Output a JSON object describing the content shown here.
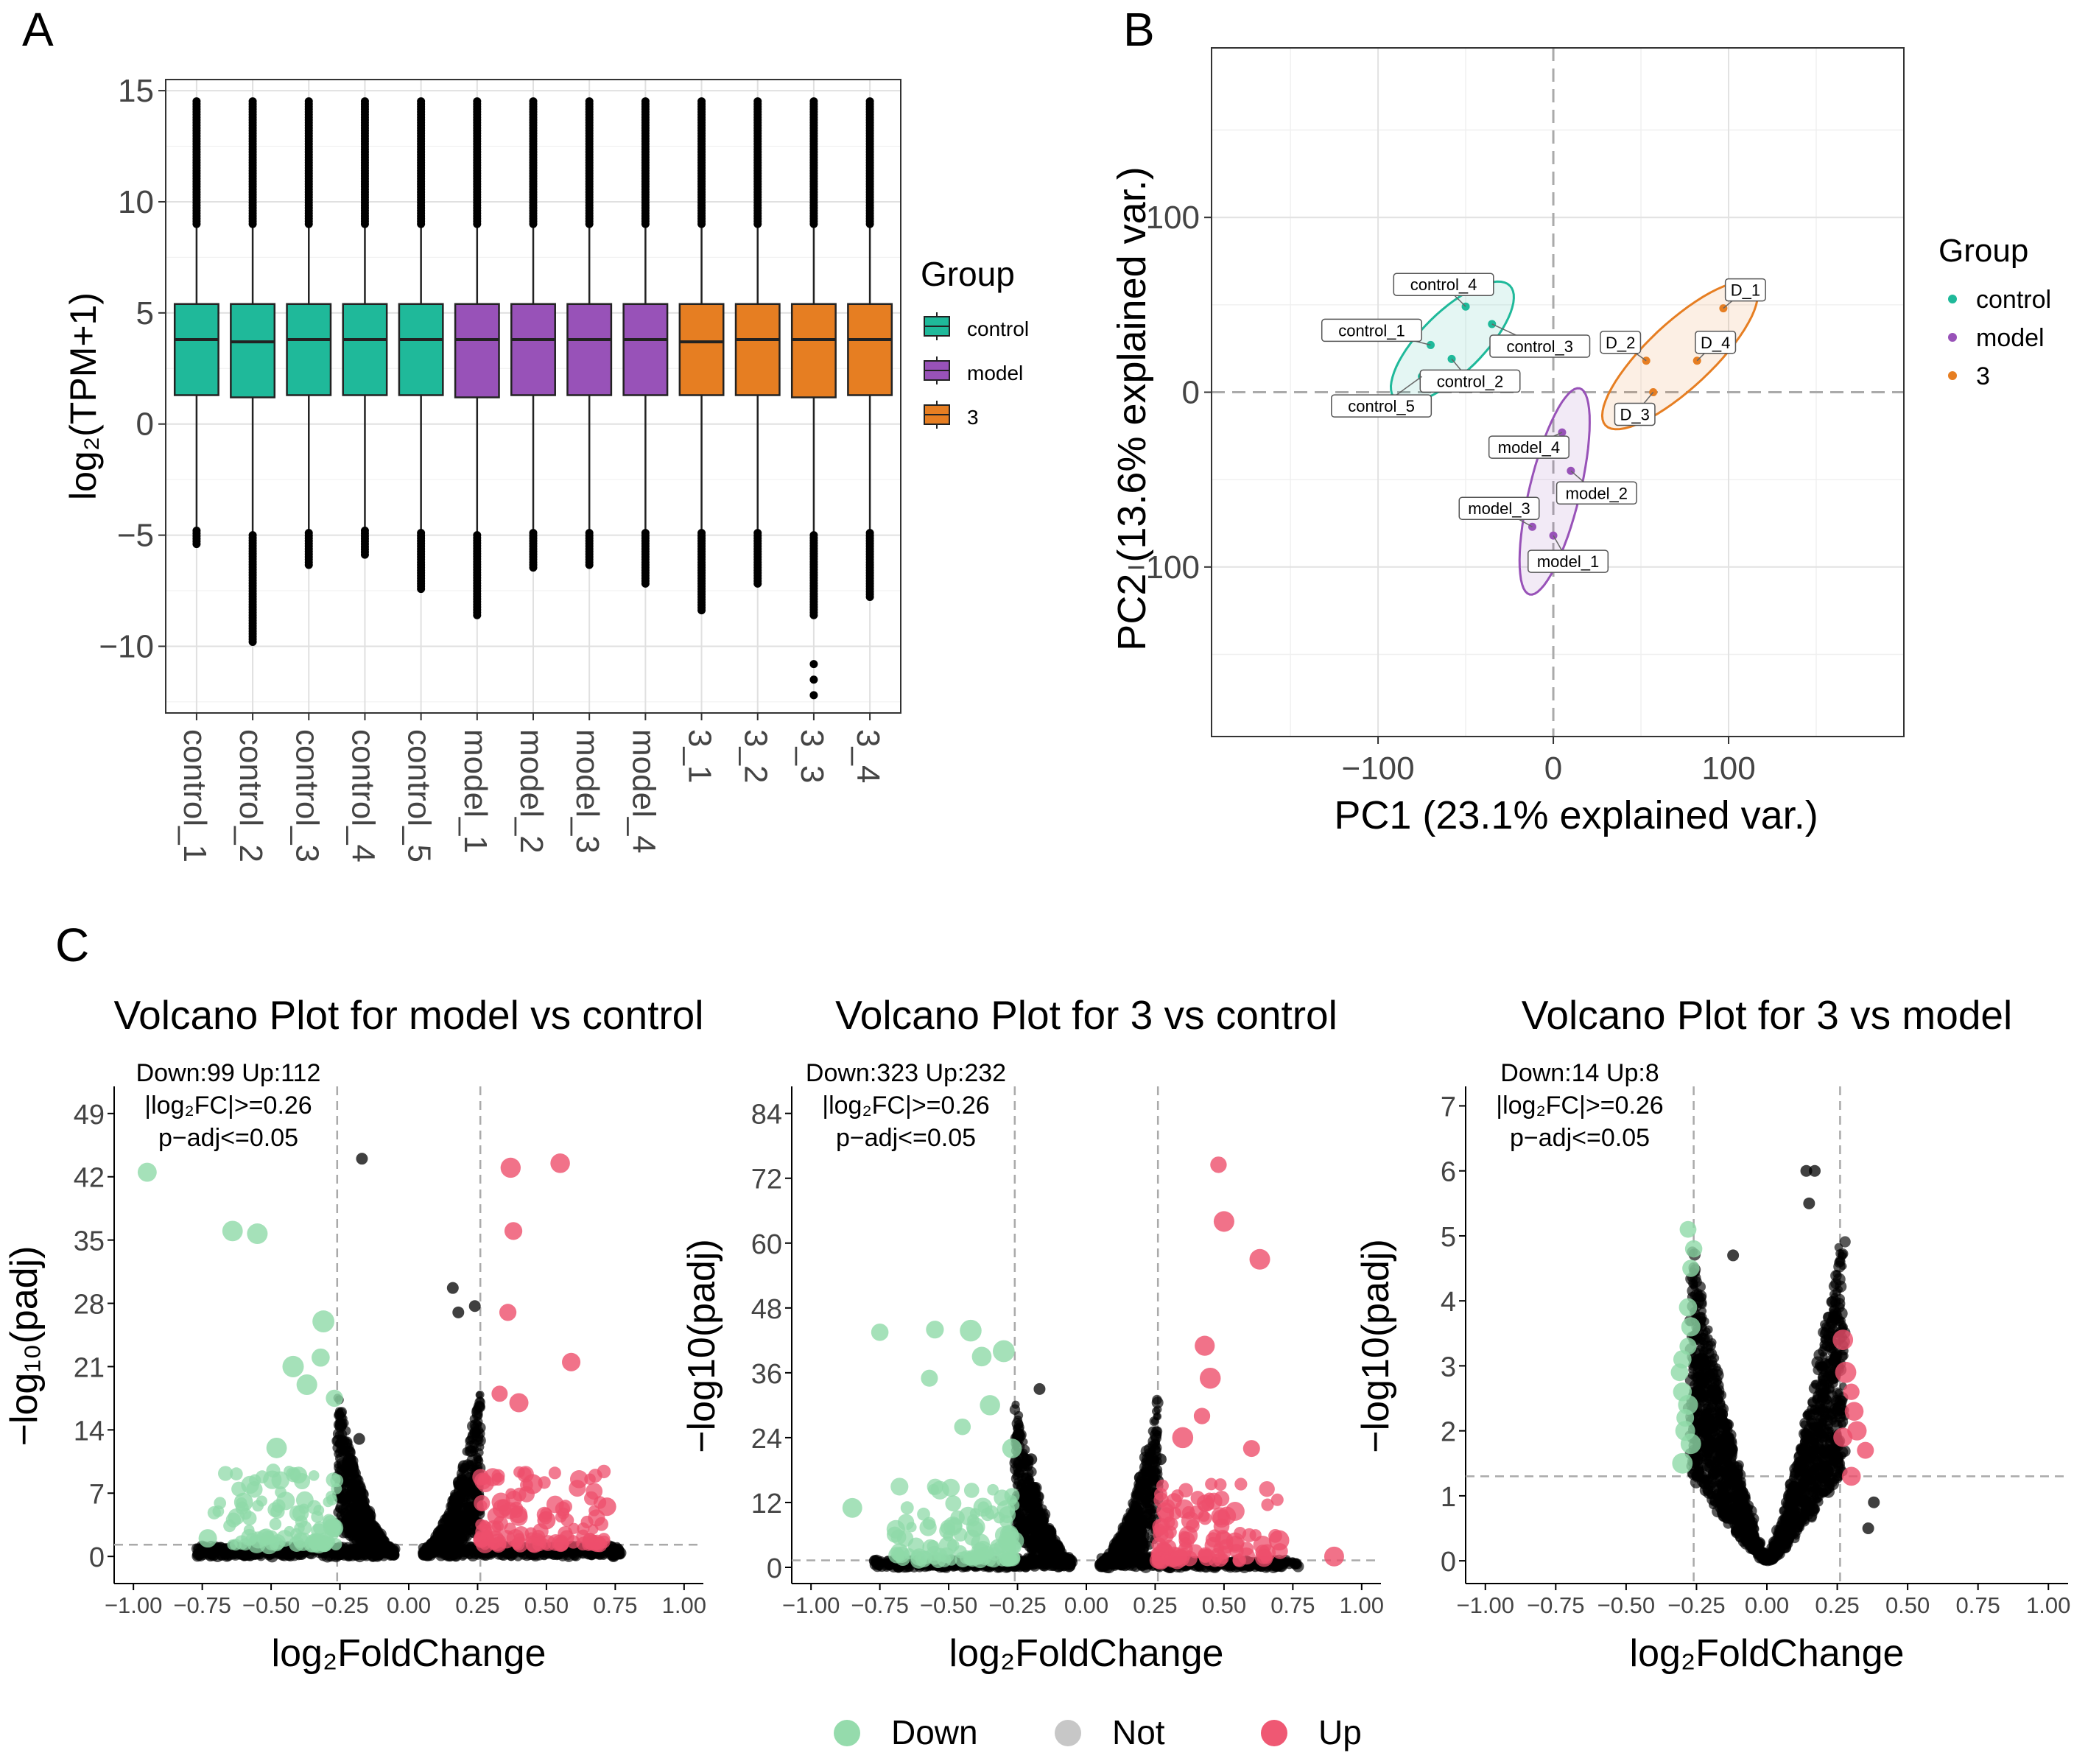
{
  "colors": {
    "control": "#1fb99a",
    "model": "#9852b8",
    "treat": "#e67e22",
    "down": "#8fd9a8",
    "not": "#000000",
    "not_legend": "#c4c4c4",
    "up": "#ee4f6c"
  },
  "panel_labels": {
    "a": "A",
    "b": "B",
    "c": "C"
  },
  "chart_data": [
    {
      "type": "boxplot",
      "panel": "A",
      "ylabel": "log₂(TPM+1)",
      "ylim": [
        -13,
        15.5
      ],
      "yticks": [
        15,
        10,
        5,
        0,
        -5,
        -10
      ],
      "ytick_labels": [
        "15",
        "10",
        "5",
        "0",
        "−5",
        "−10"
      ],
      "categories": [
        "control_1",
        "control_2",
        "control_3",
        "control_4",
        "control_5",
        "model_1",
        "model_2",
        "model_3",
        "model_4",
        "3_1",
        "3_2",
        "3_3",
        "3_4"
      ],
      "groups": [
        "control",
        "control",
        "control",
        "control",
        "control",
        "model",
        "model",
        "model",
        "model",
        "3",
        "3",
        "3",
        "3"
      ],
      "q1": [
        1.3,
        1.2,
        1.3,
        1.3,
        1.3,
        1.2,
        1.3,
        1.3,
        1.3,
        1.3,
        1.3,
        1.2,
        1.3
      ],
      "median": [
        3.8,
        3.7,
        3.8,
        3.8,
        3.8,
        3.8,
        3.8,
        3.8,
        3.8,
        3.7,
        3.8,
        3.8,
        3.8
      ],
      "q3": [
        5.4,
        5.4,
        5.4,
        5.4,
        5.4,
        5.4,
        5.4,
        5.4,
        5.4,
        5.4,
        5.4,
        5.4,
        5.4
      ],
      "whisker_high": [
        9.0,
        9.0,
        9.0,
        9.0,
        9.0,
        9.0,
        9.0,
        9.0,
        9.0,
        9.0,
        9.0,
        9.0,
        9.0
      ],
      "whisker_low": [
        -4.8,
        -5.0,
        -4.9,
        -4.8,
        -4.9,
        -5.0,
        -4.9,
        -4.9,
        -4.9,
        -4.9,
        -4.9,
        -5.0,
        -4.9
      ],
      "max_outlier": [
        14.6,
        14.6,
        14.6,
        14.6,
        14.6,
        14.6,
        14.6,
        14.6,
        14.6,
        14.6,
        14.6,
        14.6,
        14.6
      ],
      "min_outlier": [
        -5.5,
        -9.8,
        -6.4,
        -5.9,
        -7.5,
        -8.7,
        -6.5,
        -6.4,
        -7.3,
        -8.4,
        -7.2,
        -8.7,
        -7.9
      ],
      "extra_outliers": [
        [],
        [],
        [],
        [],
        [],
        [],
        [],
        [],
        [],
        [],
        [],
        [
          -10.8,
          -11.5,
          -12.2
        ],
        []
      ],
      "legend": {
        "title": "Group",
        "items": [
          "control",
          "model",
          "3"
        ]
      }
    },
    {
      "type": "scatter",
      "panel": "B",
      "xlabel": "PC1 (23.1% explained var.)",
      "ylabel": "PC2 (13.6% explained var.)",
      "xlim": [
        -195,
        200
      ],
      "ylim": [
        -197,
        197
      ],
      "xticks": [
        -100,
        0,
        100
      ],
      "xtick_labels": [
        "−100",
        "0",
        "100"
      ],
      "yticks": [
        100,
        0,
        -100
      ],
      "ytick_labels": [
        "100",
        "0",
        "−100"
      ],
      "points": [
        {
          "label": "control_1",
          "x": -70,
          "y": 27,
          "group": "control"
        },
        {
          "label": "control_2",
          "x": -58,
          "y": 19,
          "group": "control"
        },
        {
          "label": "control_3",
          "x": -35,
          "y": 39,
          "group": "control"
        },
        {
          "label": "control_4",
          "x": -50,
          "y": 49,
          "group": "control"
        },
        {
          "label": "control_5",
          "x": -75,
          "y": 9,
          "group": "control"
        },
        {
          "label": "model_1",
          "x": 0,
          "y": -82,
          "group": "model"
        },
        {
          "label": "model_2",
          "x": 10,
          "y": -45,
          "group": "model"
        },
        {
          "label": "model_3",
          "x": -12,
          "y": -77,
          "group": "model"
        },
        {
          "label": "model_4",
          "x": 5,
          "y": -23,
          "group": "model"
        },
        {
          "label": "D_1",
          "x": 97,
          "y": 48,
          "group": "3"
        },
        {
          "label": "D_2",
          "x": 53,
          "y": 18,
          "group": "3"
        },
        {
          "label": "D_3",
          "x": 57,
          "y": 0,
          "group": "3"
        },
        {
          "label": "D_4",
          "x": 82,
          "y": 18,
          "group": "3"
        }
      ],
      "legend": {
        "title": "Group",
        "items": [
          "control",
          "model",
          "3"
        ]
      }
    },
    {
      "type": "scatter",
      "panel": "C1",
      "title": "Volcano Plot for model vs control",
      "xlabel": "log₂FoldChange",
      "ylabel": "−log₁₀(padj)",
      "xlim": [
        -1.07,
        1.07
      ],
      "ylim": [
        -3,
        52
      ],
      "xticks": [
        -1,
        -0.75,
        -0.5,
        -0.25,
        0,
        0.25,
        0.5,
        0.75,
        1
      ],
      "xtick_labels": [
        "−1.00",
        "−0.75",
        "−0.50",
        "−0.25",
        "0.00",
        "0.25",
        "0.50",
        "0.75",
        "1.00"
      ],
      "yticks": [
        0,
        7,
        14,
        21,
        28,
        35,
        42,
        49
      ],
      "ytick_labels": [
        "0",
        "7",
        "14",
        "21",
        "28",
        "35",
        "42",
        "49"
      ],
      "thresholds": {
        "fc": 0.26,
        "padj_line": 1.3
      },
      "annotation": [
        "Down:99 Up:112",
        "|log₂FC|>=0.26",
        "p−adj<=0.05"
      ],
      "down": {
        "count": 99,
        "top": [
          [
            -0.95,
            42.5
          ],
          [
            -0.64,
            36
          ],
          [
            -0.55,
            35.7
          ],
          [
            -0.31,
            26
          ],
          [
            -0.42,
            21
          ],
          [
            -0.37,
            19
          ],
          [
            -0.27,
            17.5
          ],
          [
            -0.32,
            22
          ],
          [
            -0.73,
            2
          ],
          [
            -0.6,
            6
          ],
          [
            -0.48,
            12
          ],
          [
            -0.4,
            9
          ]
        ]
      },
      "up": {
        "count": 112,
        "top": [
          [
            0.55,
            43.5
          ],
          [
            0.37,
            43
          ],
          [
            0.38,
            36
          ],
          [
            0.36,
            27
          ],
          [
            0.59,
            21.5
          ],
          [
            0.4,
            17
          ],
          [
            0.72,
            5.5
          ],
          [
            0.33,
            18
          ],
          [
            0.45,
            8
          ],
          [
            0.5,
            4
          ]
        ]
      },
      "not_top": [
        [
          0.16,
          29.7
        ],
        [
          -0.17,
          44
        ],
        [
          0.18,
          27
        ],
        [
          0.24,
          27.7
        ],
        [
          -0.18,
          13
        ],
        [
          0.2,
          10
        ],
        [
          -0.72,
          0.1
        ],
        [
          0.55,
          0.5
        ]
      ]
    },
    {
      "type": "scatter",
      "panel": "C2",
      "title": "Volcano Plot for 3 vs control",
      "xlabel": "log₂FoldChange",
      "ylabel": "−log10(padj)",
      "xlim": [
        -1.07,
        1.07
      ],
      "ylim": [
        -3,
        89
      ],
      "xticks": [
        -1,
        -0.75,
        -0.5,
        -0.25,
        0,
        0.25,
        0.5,
        0.75,
        1
      ],
      "xtick_labels": [
        "−1.00",
        "−0.75",
        "−0.50",
        "−0.25",
        "0.00",
        "0.25",
        "0.50",
        "0.75",
        "1.00"
      ],
      "yticks": [
        0,
        12,
        24,
        36,
        48,
        60,
        72,
        84
      ],
      "ytick_labels": [
        "0",
        "12",
        "24",
        "36",
        "48",
        "60",
        "72",
        "84"
      ],
      "thresholds": {
        "fc": 0.26,
        "padj_line": 1.3
      },
      "annotation": [
        "Down:323 Up:232",
        "|log₂FC|>=0.26",
        "p−adj<=0.05"
      ],
      "down": {
        "count": 323,
        "top": [
          [
            -0.75,
            43.5
          ],
          [
            -0.55,
            44
          ],
          [
            -0.42,
            43.8
          ],
          [
            -0.57,
            35
          ],
          [
            -0.38,
            39
          ],
          [
            -0.3,
            40
          ],
          [
            -0.85,
            11
          ],
          [
            -0.45,
            26
          ],
          [
            -0.35,
            30
          ],
          [
            -0.27,
            22
          ]
        ]
      },
      "up": {
        "count": 232,
        "top": [
          [
            0.48,
            74.5
          ],
          [
            0.5,
            64
          ],
          [
            0.63,
            57
          ],
          [
            0.43,
            41
          ],
          [
            0.45,
            35
          ],
          [
            0.42,
            28
          ],
          [
            0.35,
            24
          ],
          [
            0.6,
            22
          ],
          [
            0.9,
            2
          ],
          [
            0.7,
            5
          ]
        ]
      },
      "not_top": [
        [
          -0.17,
          33
        ],
        [
          0.27,
          20
        ],
        [
          0.26,
          16
        ],
        [
          0.22,
          12
        ],
        [
          -0.2,
          20
        ]
      ]
    },
    {
      "type": "scatter",
      "panel": "C3",
      "title": "Volcano Plot for 3 vs model",
      "xlabel": "log₂FoldChange",
      "ylabel": "−log10(padj)",
      "xlim": [
        -1.07,
        1.07
      ],
      "ylim": [
        -0.35,
        7.3
      ],
      "xticks": [
        -1,
        -0.75,
        -0.5,
        -0.25,
        0,
        0.25,
        0.5,
        0.75,
        1
      ],
      "xtick_labels": [
        "−1.00",
        "−0.75",
        "−0.50",
        "−0.25",
        "0.00",
        "0.25",
        "0.50",
        "0.75",
        "1.00"
      ],
      "yticks": [
        0,
        1,
        2,
        3,
        4,
        5,
        6,
        7
      ],
      "ytick_labels": [
        "0",
        "1",
        "2",
        "3",
        "4",
        "5",
        "6",
        "7"
      ],
      "thresholds": {
        "fc": 0.26,
        "padj_line": 1.3
      },
      "annotation": [
        "Down:14 Up:8",
        "|log₂FC|>=0.26",
        "p−adj<=0.05"
      ],
      "down": {
        "count": 14,
        "top": [
          [
            -0.28,
            5.1
          ],
          [
            -0.27,
            4.5
          ],
          [
            -0.26,
            4.8
          ],
          [
            -0.28,
            3.3
          ],
          [
            -0.3,
            2.6
          ],
          [
            -0.29,
            2.0
          ],
          [
            -0.3,
            1.5
          ],
          [
            -0.27,
            1.8
          ],
          [
            -0.31,
            2.9
          ],
          [
            -0.28,
            3.9
          ],
          [
            -0.29,
            2.2
          ],
          [
            -0.27,
            3.6
          ],
          [
            -0.3,
            3.1
          ],
          [
            -0.28,
            2.4
          ]
        ]
      },
      "up": {
        "count": 8,
        "top": [
          [
            0.27,
            3.4
          ],
          [
            0.3,
            2.6
          ],
          [
            0.32,
            2.0
          ],
          [
            0.35,
            1.7
          ],
          [
            0.3,
            1.3
          ],
          [
            0.28,
            2.9
          ],
          [
            0.27,
            1.9
          ],
          [
            0.31,
            2.3
          ]
        ]
      },
      "not_top": [
        [
          0.17,
          6.0
        ],
        [
          0.14,
          6.0
        ],
        [
          0.15,
          5.5
        ],
        [
          -0.12,
          4.7
        ],
        [
          0.38,
          0.9
        ],
        [
          0.36,
          0.5
        ]
      ]
    }
  ],
  "volcano_legend": {
    "items": [
      "Down",
      "Not",
      "Up"
    ]
  }
}
